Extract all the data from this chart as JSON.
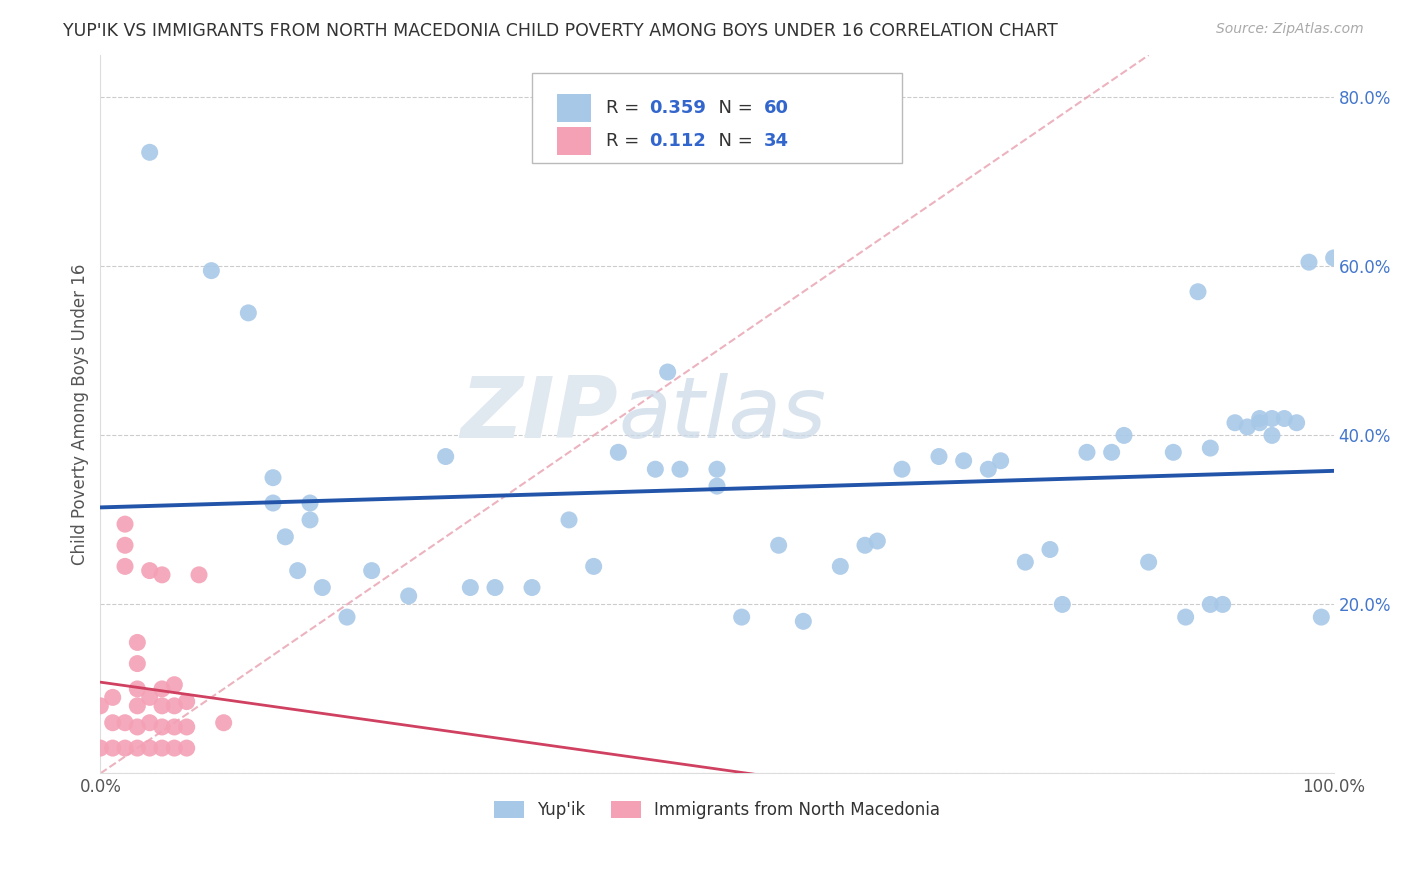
{
  "title": "YUP'IK VS IMMIGRANTS FROM NORTH MACEDONIA CHILD POVERTY AMONG BOYS UNDER 16 CORRELATION CHART",
  "source": "Source: ZipAtlas.com",
  "ylabel": "Child Poverty Among Boys Under 16",
  "xlim": [
    0,
    1.0
  ],
  "ylim": [
    0,
    0.85
  ],
  "xticks": [
    0.0,
    0.2,
    0.4,
    0.6,
    0.8,
    1.0
  ],
  "xticklabels": [
    "0.0%",
    "",
    "",
    "",
    "",
    "100.0%"
  ],
  "ytick_positions": [
    0.0,
    0.2,
    0.4,
    0.6,
    0.8
  ],
  "yticklabels": [
    "",
    "20.0%",
    "40.0%",
    "60.0%",
    "80.0%"
  ],
  "R_blue": 0.359,
  "N_blue": 60,
  "R_pink": 0.112,
  "N_pink": 34,
  "blue_color": "#a8c8e8",
  "pink_color": "#f4a0b5",
  "line_blue_color": "#2255aa",
  "line_pink_color": "#d04060",
  "diag_color": "#e8a0b0",
  "watermark_color": "#e0e8f0",
  "legend_blue_label": "Yup'ik",
  "legend_pink_label": "Immigrants from North Macedonia",
  "blue_scatter_x": [
    0.04,
    0.09,
    0.12,
    0.14,
    0.14,
    0.15,
    0.16,
    0.17,
    0.17,
    0.18,
    0.2,
    0.22,
    0.25,
    0.28,
    0.3,
    0.32,
    0.35,
    0.38,
    0.4,
    0.42,
    0.45,
    0.46,
    0.47,
    0.5,
    0.5,
    0.52,
    0.55,
    0.57,
    0.6,
    0.62,
    0.63,
    0.65,
    0.68,
    0.7,
    0.72,
    0.73,
    0.75,
    0.77,
    0.78,
    0.8,
    0.82,
    0.83,
    0.85,
    0.87,
    0.88,
    0.89,
    0.9,
    0.9,
    0.91,
    0.92,
    0.93,
    0.94,
    0.94,
    0.95,
    0.95,
    0.96,
    0.97,
    0.98,
    0.99,
    1.0
  ],
  "blue_scatter_y": [
    0.735,
    0.595,
    0.545,
    0.35,
    0.32,
    0.28,
    0.24,
    0.3,
    0.32,
    0.22,
    0.185,
    0.24,
    0.21,
    0.375,
    0.22,
    0.22,
    0.22,
    0.3,
    0.245,
    0.38,
    0.36,
    0.475,
    0.36,
    0.34,
    0.36,
    0.185,
    0.27,
    0.18,
    0.245,
    0.27,
    0.275,
    0.36,
    0.375,
    0.37,
    0.36,
    0.37,
    0.25,
    0.265,
    0.2,
    0.38,
    0.38,
    0.4,
    0.25,
    0.38,
    0.185,
    0.57,
    0.2,
    0.385,
    0.2,
    0.415,
    0.41,
    0.415,
    0.42,
    0.4,
    0.42,
    0.42,
    0.415,
    0.605,
    0.185,
    0.61
  ],
  "pink_scatter_x": [
    0.0,
    0.0,
    0.01,
    0.01,
    0.01,
    0.02,
    0.02,
    0.02,
    0.02,
    0.02,
    0.03,
    0.03,
    0.03,
    0.03,
    0.03,
    0.03,
    0.04,
    0.04,
    0.04,
    0.04,
    0.05,
    0.05,
    0.05,
    0.05,
    0.05,
    0.06,
    0.06,
    0.06,
    0.06,
    0.07,
    0.07,
    0.07,
    0.08,
    0.1
  ],
  "pink_scatter_y": [
    0.03,
    0.08,
    0.03,
    0.06,
    0.09,
    0.03,
    0.06,
    0.245,
    0.27,
    0.295,
    0.03,
    0.055,
    0.08,
    0.1,
    0.13,
    0.155,
    0.03,
    0.06,
    0.09,
    0.24,
    0.03,
    0.055,
    0.08,
    0.1,
    0.235,
    0.03,
    0.055,
    0.08,
    0.105,
    0.03,
    0.055,
    0.085,
    0.235,
    0.06
  ]
}
